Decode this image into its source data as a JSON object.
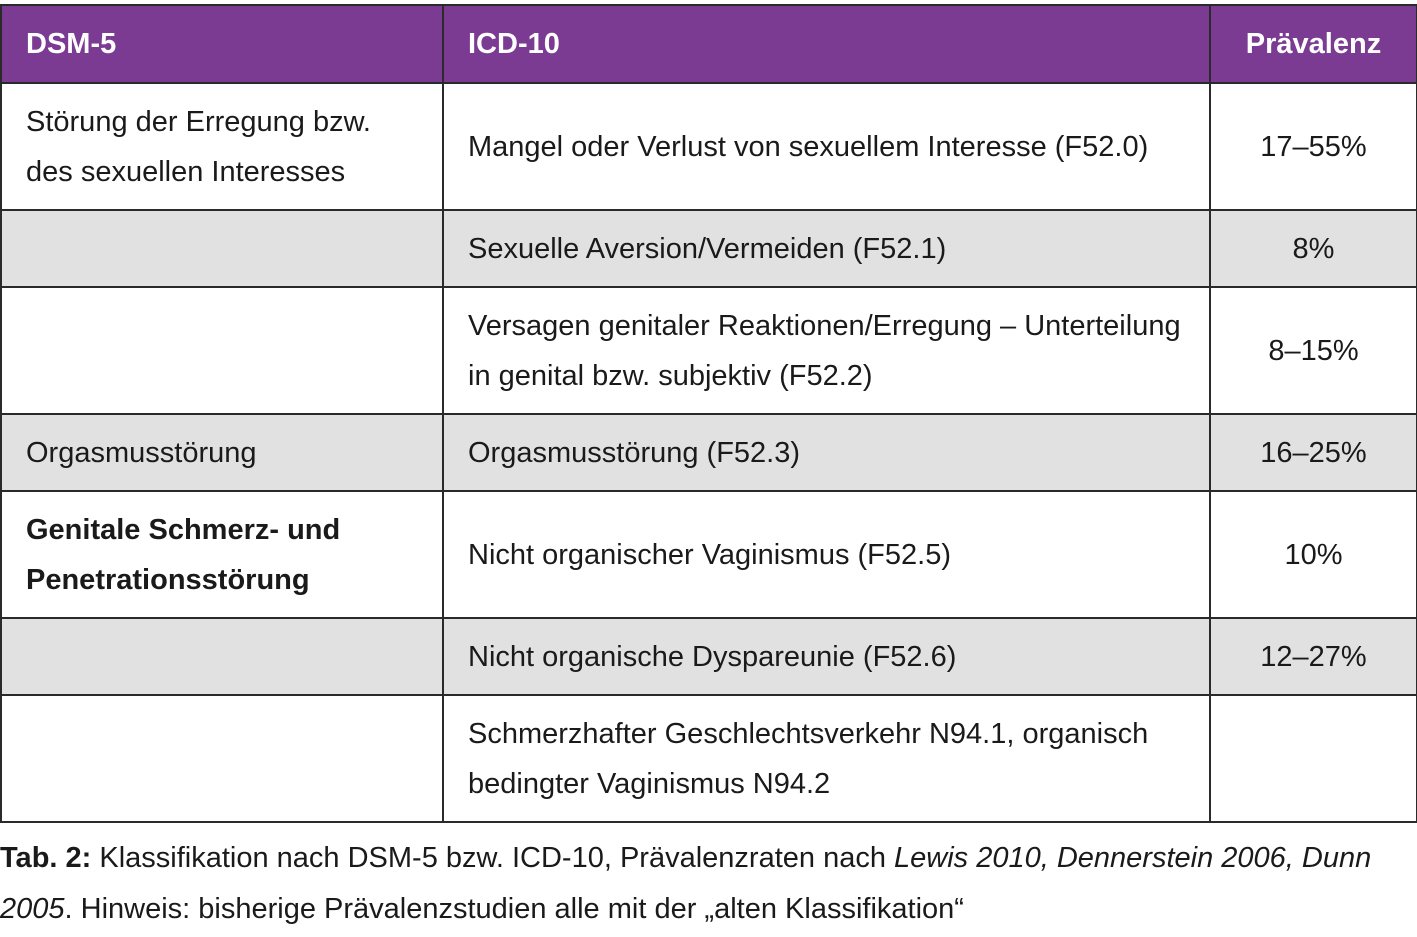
{
  "table": {
    "headers": {
      "dsm": "DSM-5",
      "icd": "ICD-10",
      "prevalence": "Prävalenz"
    },
    "rows": [
      {
        "dsm": "Störung der Erregung bzw. des sexuellen Interesses",
        "icd": "Mangel oder Verlust von sexuellem Interesse (F52.0)",
        "prevalence": "17–55%"
      },
      {
        "dsm": "",
        "icd": "Sexuelle Aversion/Vermeiden (F52.1)",
        "prevalence": "8%"
      },
      {
        "dsm": "",
        "icd": "Versagen genitaler Reaktionen/Erregung – Unterteilung in genital bzw. subjektiv (F52.2)",
        "prevalence": "8–15%"
      },
      {
        "dsm": "Orgasmusstörung",
        "icd": "Orgasmusstörung (F52.3)",
        "prevalence": "16–25%"
      },
      {
        "dsm": "Genitale Schmerz- und Penetrationsstörung",
        "icd": "Nicht organischer Vaginismus (F52.5)",
        "prevalence": "10%"
      },
      {
        "dsm": "",
        "icd": "Nicht organische Dyspareunie (F52.6)",
        "prevalence": "12–27%"
      },
      {
        "dsm": "",
        "icd": "Schmerzhafter Geschlechtsverkehr N94.1, organisch bedingter Vaginismus N94.2",
        "prevalence": ""
      }
    ]
  },
  "caption": {
    "label": "Tab. 2:",
    "text": " Klassifikation nach DSM-5 bzw. ICD-10, Prävalenzraten nach ",
    "references": "Lewis 2010, Dennerstein 2006, Dunn 2005",
    "note": ". Hinweis: bisherige Prävalenzstudien alle mit der „alten Klassifikation“"
  },
  "colors": {
    "header_bg": "#7b3b92",
    "header_text": "#ffffff",
    "shaded_row": "#e1e1e1",
    "border": "#2a2a2a"
  }
}
